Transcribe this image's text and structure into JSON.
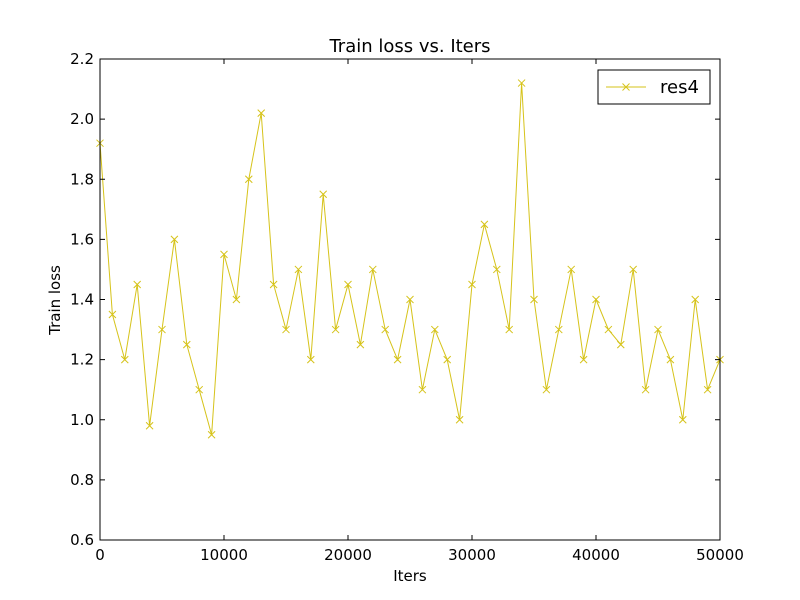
{
  "chart_data": {
    "type": "line",
    "title": "Train loss  vs. Iters",
    "xlabel": "Iters",
    "ylabel": "Train loss",
    "xlim": [
      0,
      50000
    ],
    "ylim": [
      0.6,
      2.2
    ],
    "xticks": [
      0,
      10000,
      20000,
      30000,
      40000,
      50000
    ],
    "xtick_labels": [
      "0",
      "10000",
      "20000",
      "30000",
      "40000",
      "50000"
    ],
    "yticks": [
      0.6,
      0.8,
      1.0,
      1.2,
      1.4,
      1.6,
      1.8,
      2.0,
      2.2
    ],
    "ytick_labels": [
      "0.6",
      "0.8",
      "1.0",
      "1.2",
      "1.4",
      "1.6",
      "1.8",
      "2.0",
      "2.2"
    ],
    "grid": false,
    "legend_position": "top-right",
    "series": [
      {
        "name": "res4",
        "color": "#d6c31a",
        "marker": "x",
        "x": [
          0,
          1000,
          2000,
          3000,
          4000,
          5000,
          6000,
          7000,
          8000,
          9000,
          10000,
          11000,
          12000,
          13000,
          14000,
          15000,
          16000,
          17000,
          18000,
          19000,
          20000,
          21000,
          22000,
          23000,
          24000,
          25000,
          26000,
          27000,
          28000,
          29000,
          30000,
          31000,
          32000,
          33000,
          34000,
          35000,
          36000,
          37000,
          38000,
          39000,
          40000,
          41000,
          42000,
          43000,
          44000,
          45000,
          46000,
          47000,
          48000,
          49000,
          50000
        ],
        "y": [
          1.92,
          1.35,
          1.2,
          1.45,
          0.98,
          1.3,
          1.6,
          1.25,
          1.1,
          0.95,
          1.55,
          1.4,
          1.8,
          2.02,
          1.45,
          1.3,
          1.5,
          1.2,
          1.75,
          1.3,
          1.45,
          1.25,
          1.5,
          1.3,
          1.2,
          1.4,
          1.1,
          1.3,
          1.2,
          1.0,
          1.45,
          1.65,
          1.5,
          1.3,
          2.12,
          1.4,
          1.1,
          1.3,
          1.5,
          1.2,
          1.4,
          1.3,
          1.25,
          1.5,
          1.1,
          1.3,
          1.2,
          1.0,
          1.4,
          1.1,
          1.2
        ]
      }
    ]
  }
}
